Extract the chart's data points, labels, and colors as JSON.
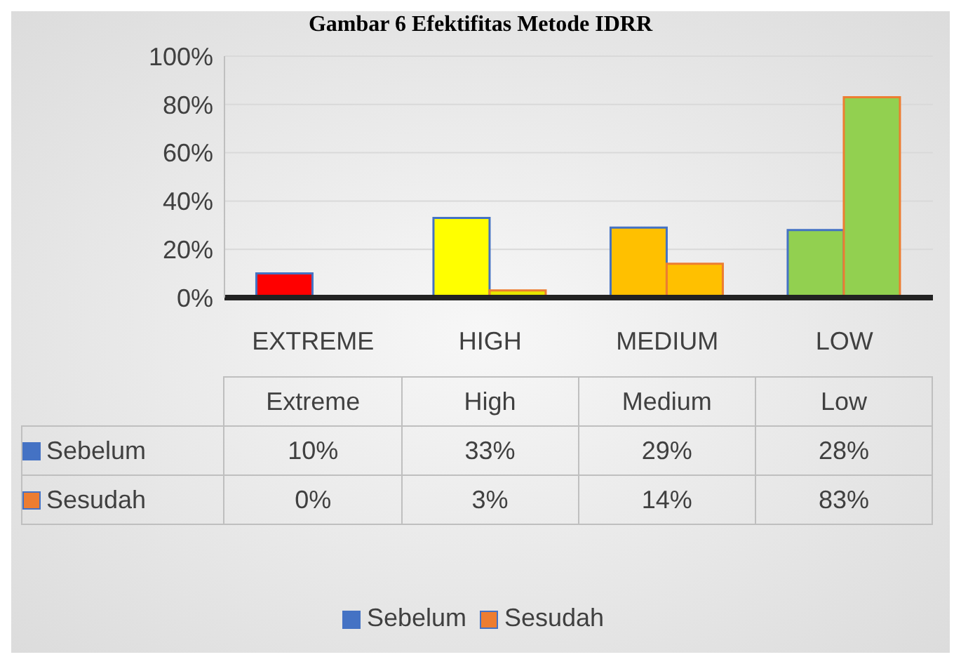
{
  "chart_data": {
    "type": "bar",
    "title": "Gambar 6 Efektifitas Metode IDRR",
    "categories": [
      "EXTREME",
      "HIGH",
      "MEDIUM",
      "LOW"
    ],
    "annotations": [
      "Extreme",
      "High",
      "Medium",
      "Low"
    ],
    "series": [
      {
        "name": "Sebelum",
        "color": "#4472c4",
        "colors": [
          "#ff0000",
          "#ffff00",
          "#ffc000",
          "#92d050"
        ],
        "values": [
          10,
          33,
          29,
          28
        ],
        "value_labels": [
          "10%",
          "33%",
          "29%",
          "28%"
        ]
      },
      {
        "name": "Sesudah",
        "color": "#ed7d31",
        "colors": [
          "#c00000",
          "#e6e600",
          "#ffc000",
          "#92d050"
        ],
        "values": [
          0,
          3,
          14,
          83
        ],
        "value_labels": [
          "0%",
          "3%",
          "14%",
          "83%"
        ]
      }
    ],
    "ylim": [
      0,
      100
    ],
    "yticks": [
      {
        "value": 0,
        "label": "0%"
      },
      {
        "value": 20,
        "label": "20%"
      },
      {
        "value": 40,
        "label": "40%"
      },
      {
        "value": 60,
        "label": "60%"
      },
      {
        "value": 80,
        "label": "80%"
      },
      {
        "value": 100,
        "label": "100%"
      }
    ],
    "grid": "y",
    "legend": "bottom"
  }
}
